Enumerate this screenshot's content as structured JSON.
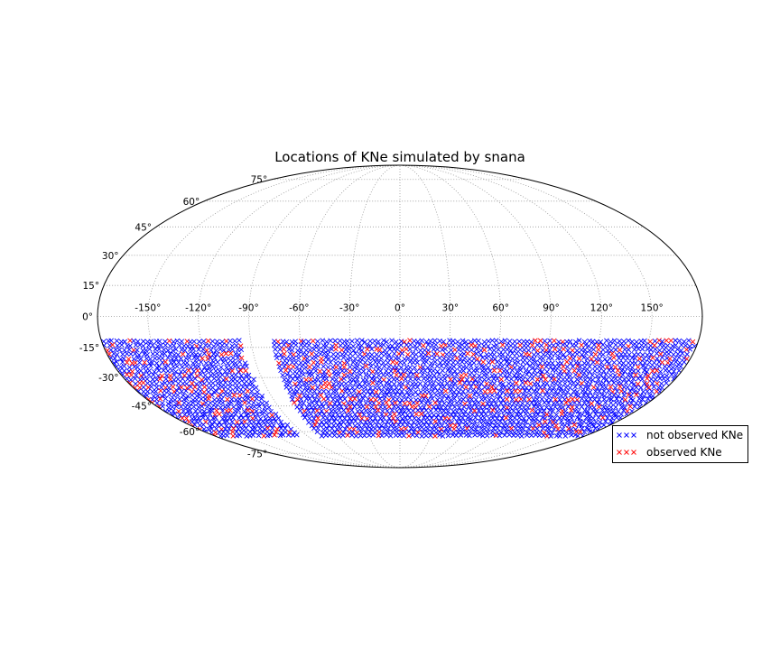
{
  "chart_data": {
    "type": "scatter",
    "title": "Locations of KNe simulated by snana",
    "projection": "mollweide",
    "grid": true,
    "legend_position": "lower-right",
    "x_axis": {
      "label": "",
      "range_deg": [
        -180,
        180
      ],
      "ticks": [
        -150,
        -120,
        -90,
        -60,
        -30,
        0,
        30,
        60,
        90,
        120,
        150
      ],
      "tick_labels": [
        "-150°",
        "-120°",
        "-90°",
        "-60°",
        "-30°",
        "0°",
        "30°",
        "60°",
        "90°",
        "120°",
        "150°"
      ]
    },
    "y_axis": {
      "label": "",
      "range_deg": [
        -90,
        90
      ],
      "ticks": [
        75,
        60,
        45,
        30,
        15,
        0,
        -15,
        -30,
        -45,
        -60,
        -75
      ],
      "tick_labels": [
        "75°",
        "60°",
        "45°",
        "30°",
        "15°",
        "0°",
        "-15°",
        "-30°",
        "-45°",
        "-60°",
        "-75°"
      ]
    },
    "series": [
      {
        "name": "not observed KNe",
        "color": "#0000ff",
        "marker": "x",
        "footprint": {
          "lon_ranges_deg": [
            [
              -180,
              -95
            ],
            [
              -77,
              180
            ]
          ],
          "lat_range_deg": [
            -63,
            -12
          ],
          "approx_count": 2000
        }
      },
      {
        "name": "observed KNe",
        "color": "#ff0000",
        "marker": "x",
        "footprint": {
          "lon_ranges_deg": [
            [
              -180,
              -95
            ],
            [
              -77,
              180
            ]
          ],
          "lat_range_deg": [
            -63,
            -12
          ],
          "approx_count": 330
        }
      }
    ]
  }
}
